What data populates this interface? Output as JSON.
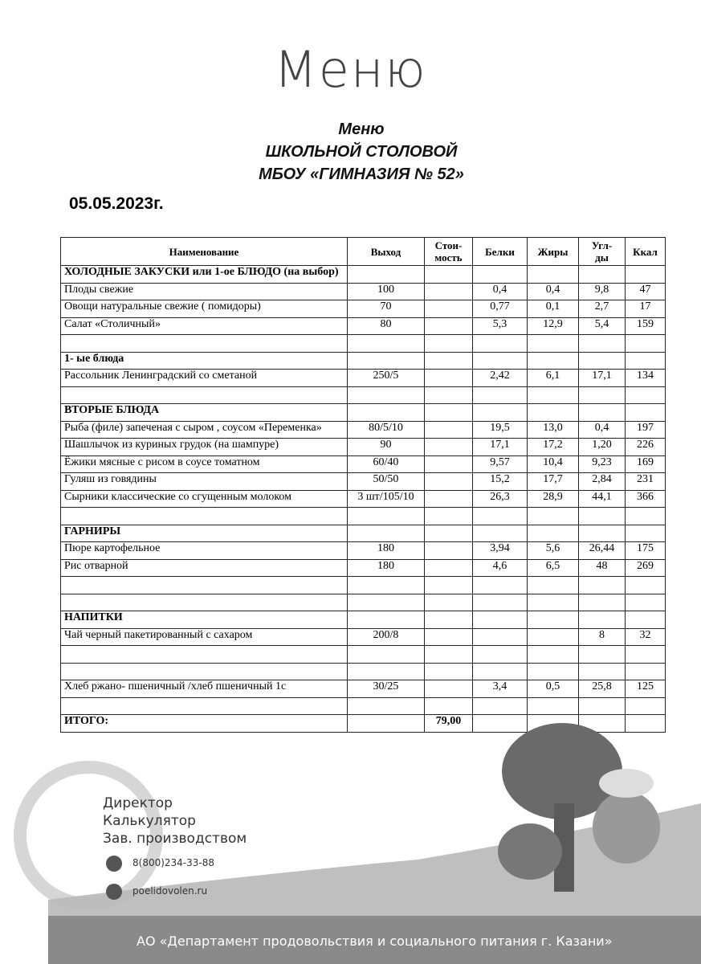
{
  "header": {
    "script_title": "Меню",
    "lines": [
      "Меню",
      "ШКОЛЬНОЙ СТОЛОВОЙ",
      "МБОУ «ГИМНАЗИЯ № 52»"
    ],
    "date": "05.05.2023г."
  },
  "table": {
    "columns": [
      "Наименование",
      "Выход",
      "Стои-\nмость",
      "Белки",
      "Жиры",
      "Угл-\nды",
      "Ккал"
    ],
    "rows": [
      [
        "ХОЛОДНЫЕ ЗАКУСКИ или 1-ое БЛЮДО (на выбор)",
        null,
        null,
        null,
        null,
        null,
        null
      ],
      [
        "Плоды свежие",
        "100",
        null,
        "0,4",
        "0,4",
        "9,8",
        "47"
      ],
      [
        "Овощи натуральные свежие ( помидоры)",
        "70",
        null,
        "0,77",
        "0,1",
        "2,7",
        "17"
      ],
      [
        "Салат «Столичный»",
        "80",
        null,
        "5,3",
        "12,9",
        "5,4",
        "159"
      ],
      [
        null,
        null,
        null,
        null,
        null,
        null,
        null
      ],
      [
        "1-   ые блюда",
        null,
        null,
        null,
        null,
        null,
        null
      ],
      [
        "Рассольник Ленинградский со сметаной",
        "250/5",
        null,
        "2,42",
        "6,1",
        "17,1",
        "134"
      ],
      [
        null,
        null,
        null,
        null,
        null,
        null,
        null
      ],
      [
        "ВТОРЫЕ БЛЮДА",
        null,
        null,
        null,
        null,
        null,
        null
      ],
      [
        "Рыба (филе) запеченая с сыром , соусом «Переменка»",
        "80/5/10",
        null,
        "19,5",
        "13,0",
        "0,4",
        "197"
      ],
      [
        "Шашлычок из куриных грудок (на шампуре)",
        "90",
        null,
        "17,1",
        "17,2",
        "1,20",
        "226"
      ],
      [
        "Ёжики мясные с рисом в соусе томатном",
        "60/40",
        null,
        "9,57",
        "10,4",
        "9,23",
        "169"
      ],
      [
        "Гуляш из говядины",
        "50/50",
        null,
        "15,2",
        "17,7",
        "2,84",
        "231"
      ],
      [
        "Сырники классические со сгущенным молоком",
        "3 шт/105/10",
        null,
        "26,3",
        "28,9",
        "44,1",
        "366"
      ],
      [
        null,
        null,
        null,
        null,
        null,
        null,
        null
      ],
      [
        "ГАРНИРЫ",
        null,
        null,
        null,
        null,
        null,
        null
      ],
      [
        "Пюре картофельное",
        "180",
        null,
        "3,94",
        "5,6",
        "26,44",
        "175"
      ],
      [
        "Рис отварной",
        "180",
        null,
        "4,6",
        "6,5",
        "48",
        "269"
      ],
      [
        null,
        null,
        null,
        null,
        null,
        null,
        null
      ],
      [
        null,
        null,
        null,
        null,
        null,
        null,
        null
      ],
      [
        "НАПИТКИ",
        null,
        null,
        null,
        null,
        null,
        null
      ],
      [
        "Чай черный пакетированный с сахаром",
        "200/8",
        null,
        null,
        null,
        "8",
        "32"
      ],
      [
        null,
        null,
        null,
        null,
        null,
        null,
        null
      ],
      [
        null,
        null,
        null,
        null,
        null,
        null,
        null
      ],
      [
        "Хлеб  ржано- пшеничный /хлеб пшеничный 1с",
        "30/25",
        null,
        "3,4",
        "0,5",
        "25,8",
        "125"
      ],
      [
        null,
        null,
        null,
        null,
        null,
        null,
        null
      ],
      [
        "ИТОГО:",
        null,
        "79,00",
        null,
        null,
        null,
        null
      ]
    ]
  },
  "footer": {
    "roles": [
      "Директор",
      "Калькулятор",
      "Зав. производством"
    ],
    "phone": "8(800)234-33-88",
    "site": "poelidovolen.ru",
    "organization": "АО «Департамент продовольствия и социального питания г. Казани»"
  }
}
